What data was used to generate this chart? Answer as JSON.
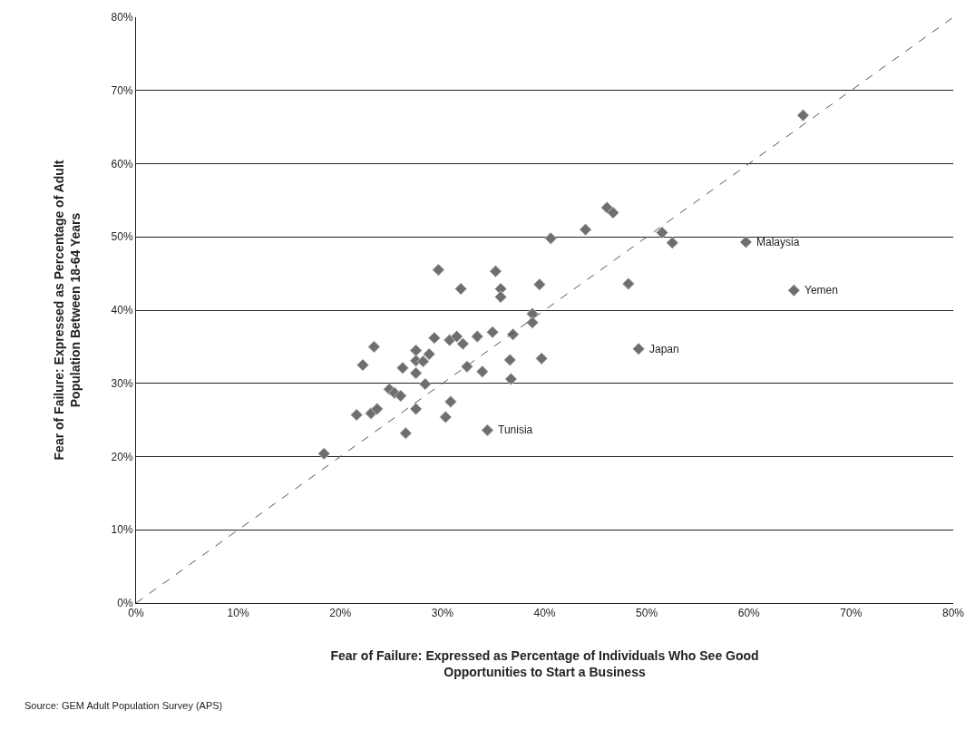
{
  "chart_data": {
    "type": "scatter",
    "xlabel": "Fear of Failure: Expressed as Percentage of Individuals Who See Good\nOpportunities to Start a Business",
    "ylabel": "Fear of Failure: Expressed as Percentage of Adult\nPopulation Between 18-64 Years",
    "series": [
      {
        "marker": "diamond",
        "color": "#6e6e6e",
        "x": [
          18.4,
          21.6,
          23.0,
          23.6,
          22.2,
          23.3,
          26.4,
          26.1,
          24.8,
          25.3,
          25.9,
          27.4,
          27.4,
          28.1,
          28.7,
          27.4,
          28.3,
          27.4,
          29.2,
          30.7,
          31.4,
          32.0,
          33.4,
          34.9,
          32.4,
          33.9,
          30.8,
          30.3,
          34.4,
          36.9,
          36.6,
          36.7,
          38.8,
          38.8,
          29.6,
          31.8,
          35.2,
          35.7,
          35.7,
          39.5,
          40.6,
          44.0,
          46.1,
          46.7,
          39.7,
          48.2,
          49.2,
          51.5,
          52.5,
          59.7,
          64.4,
          65.3
        ],
        "values": [
          20.4,
          25.7,
          25.9,
          26.5,
          32.5,
          35.0,
          23.2,
          32.1,
          29.2,
          28.7,
          28.3,
          34.5,
          33.1,
          33.0,
          34.0,
          31.4,
          29.9,
          26.5,
          36.2,
          35.9,
          36.4,
          35.4,
          36.4,
          37.0,
          32.3,
          31.6,
          27.5,
          25.4,
          23.6,
          36.7,
          33.2,
          30.6,
          39.5,
          38.3,
          45.5,
          42.9,
          45.3,
          42.9,
          41.8,
          43.5,
          49.8,
          51.0,
          54.0,
          53.3,
          33.4,
          43.6,
          34.7,
          50.6,
          49.2,
          49.3,
          42.7,
          66.6
        ]
      },
      {
        "type": "line",
        "color": "#555555",
        "line_style": "dashed",
        "marker": "none",
        "x": [
          0,
          80
        ],
        "values": [
          0,
          80
        ]
      }
    ],
    "annotations": [
      {
        "text": "Malaysia",
        "x": 59.7,
        "y": 49.3
      },
      {
        "text": "Yemen",
        "x": 64.4,
        "y": 42.7
      },
      {
        "text": "Japan",
        "x": 49.2,
        "y": 34.7
      },
      {
        "text": "Tunisia",
        "x": 34.4,
        "y": 23.6
      },
      "Source: GEM Adult Population Survey (APS)"
    ],
    "xlim": [
      0,
      80
    ],
    "ylim": [
      0,
      80
    ],
    "xticks": [
      {
        "value": 0,
        "label": "0%"
      },
      {
        "value": 10,
        "label": "10%"
      },
      {
        "value": 20,
        "label": "20%"
      },
      {
        "value": 30,
        "label": "30%"
      },
      {
        "value": 40,
        "label": "40%"
      },
      {
        "value": 50,
        "label": "50%"
      },
      {
        "value": 60,
        "label": "60%"
      },
      {
        "value": 70,
        "label": "70%"
      },
      {
        "value": 80,
        "label": "80%"
      }
    ],
    "yticks": [
      {
        "value": 0,
        "label": "0%"
      },
      {
        "value": 10,
        "label": "10%"
      },
      {
        "value": 20,
        "label": "20%"
      },
      {
        "value": 30,
        "label": "30%"
      },
      {
        "value": 40,
        "label": "40%"
      },
      {
        "value": 50,
        "label": "50%"
      },
      {
        "value": 60,
        "label": "60%"
      },
      {
        "value": 70,
        "label": "70%"
      },
      {
        "value": 80,
        "label": "80%"
      }
    ],
    "grid": "y"
  }
}
